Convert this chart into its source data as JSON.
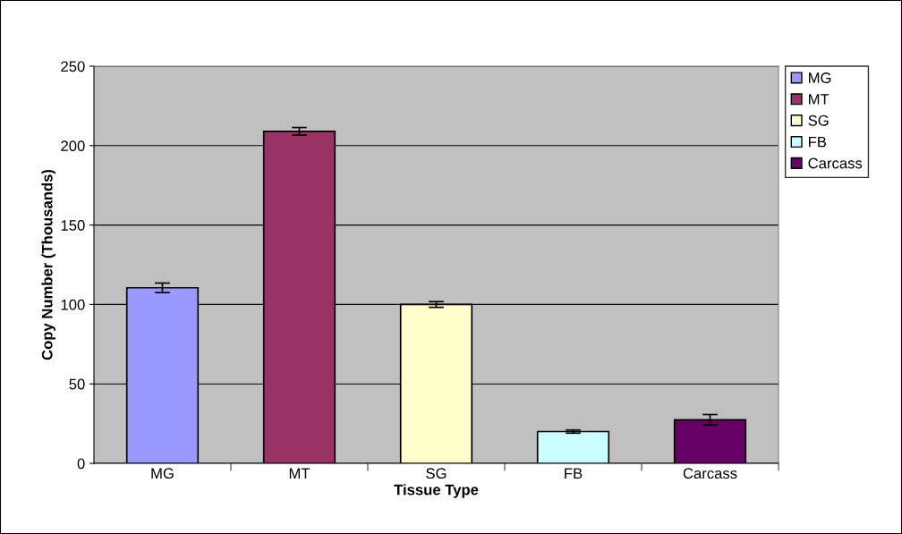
{
  "chart_data": {
    "type": "bar",
    "xlabel": "Tissue Type",
    "ylabel": "Copy Number (Thousands)",
    "categories": [
      "MG",
      "MT",
      "SG",
      "FB",
      "Carcass"
    ],
    "series": [
      {
        "name": "MG",
        "color": "#9999ff",
        "values": [
          110.5,
          null,
          null,
          null,
          null
        ],
        "errors": [
          3,
          null,
          null,
          null,
          null
        ]
      },
      {
        "name": "MT",
        "color": "#993366",
        "values": [
          null,
          209,
          null,
          null,
          null
        ],
        "errors": [
          null,
          2.4,
          null,
          null,
          null
        ]
      },
      {
        "name": "SG",
        "color": "#ffffcc",
        "values": [
          null,
          null,
          100,
          null,
          null
        ],
        "errors": [
          null,
          null,
          1.8,
          null,
          null
        ]
      },
      {
        "name": "FB",
        "color": "#ccffff",
        "values": [
          null,
          null,
          null,
          20,
          null
        ],
        "errors": [
          null,
          null,
          null,
          1,
          null
        ]
      },
      {
        "name": "Carcass",
        "color": "#660066",
        "values": [
          null,
          null,
          null,
          null,
          27.4
        ],
        "errors": [
          null,
          null,
          null,
          null,
          3.3
        ]
      }
    ],
    "ylim": [
      0,
      250
    ],
    "yticks": [
      0,
      50,
      100,
      150,
      200,
      250
    ],
    "grid": "y",
    "legend": "right"
  }
}
